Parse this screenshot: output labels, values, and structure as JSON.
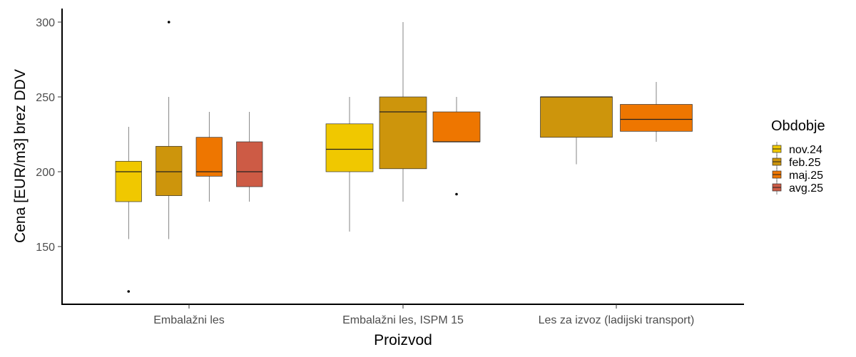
{
  "chart_data": {
    "type": "boxplot",
    "xlabel": "Proizvod",
    "ylabel": "Cena [EUR/m3] brez DDV",
    "ylim": [
      110,
      308
    ],
    "yticks": [
      150,
      200,
      250,
      300
    ],
    "categories": [
      "Embalažni les",
      "Embalažni les, ISPM 15",
      "Les za izvoz (ladijski transport)"
    ],
    "grid": false,
    "legend": {
      "title": "Obdobje",
      "position": "right",
      "entries": [
        {
          "label": "nov.24",
          "color": "#F0C800"
        },
        {
          "label": "feb.25",
          "color": "#CD950C"
        },
        {
          "label": "maj.25",
          "color": "#EE7600"
        },
        {
          "label": "avg.25",
          "color": "#CD5B45"
        }
      ]
    },
    "boxes": [
      {
        "category": "Embalažni les",
        "series": "nov.24",
        "min": 155,
        "q1": 180,
        "median": 200,
        "q3": 207,
        "max": 230,
        "outliers": [
          120
        ]
      },
      {
        "category": "Embalažni les",
        "series": "feb.25",
        "min": 155,
        "q1": 184,
        "median": 200,
        "q3": 217,
        "max": 250,
        "outliers": [
          300
        ]
      },
      {
        "category": "Embalažni les",
        "series": "maj.25",
        "min": 180,
        "q1": 197,
        "median": 200,
        "q3": 223,
        "max": 240,
        "outliers": []
      },
      {
        "category": "Embalažni les",
        "series": "avg.25",
        "min": 180,
        "q1": 190,
        "median": 200,
        "q3": 220,
        "max": 240,
        "outliers": []
      },
      {
        "category": "Embalažni les, ISPM 15",
        "series": "nov.24",
        "min": 160,
        "q1": 200,
        "median": 215,
        "q3": 232,
        "max": 250,
        "outliers": []
      },
      {
        "category": "Embalažni les, ISPM 15",
        "series": "feb.25",
        "min": 180,
        "q1": 202,
        "median": 240,
        "q3": 250,
        "max": 300,
        "outliers": []
      },
      {
        "category": "Embalažni les, ISPM 15",
        "series": "maj.25",
        "min": 220,
        "q1": 220,
        "median": 220,
        "q3": 240,
        "max": 250,
        "outliers": [
          185
        ]
      },
      {
        "category": "Les za izvoz (ladijski transport)",
        "series": "feb.25",
        "min": 205,
        "q1": 223,
        "median": 250,
        "q3": 250,
        "max": 250,
        "outliers": []
      },
      {
        "category": "Les za izvoz (ladijski transport)",
        "series": "maj.25",
        "min": 220,
        "q1": 227,
        "median": 235,
        "q3": 245,
        "max": 260,
        "outliers": []
      }
    ]
  }
}
